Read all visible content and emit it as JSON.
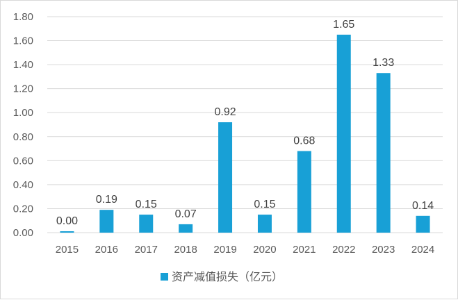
{
  "chart_data": {
    "type": "bar",
    "categories": [
      "2015",
      "2016",
      "2017",
      "2018",
      "2019",
      "2020",
      "2021",
      "2022",
      "2023",
      "2024"
    ],
    "series": [
      {
        "name": "资产减值损失（亿元）",
        "values": [
          0.0,
          0.19,
          0.15,
          0.07,
          0.92,
          0.15,
          0.68,
          1.65,
          1.33,
          0.14
        ],
        "data_labels": [
          "0.00",
          "0.19",
          "0.15",
          "0.07",
          "0.92",
          "0.15",
          "0.68",
          "1.65",
          "1.33",
          "0.14"
        ],
        "color": "#18a0d6"
      }
    ],
    "ylim": [
      0,
      1.8
    ],
    "yticks": [
      "0.00",
      "0.20",
      "0.40",
      "0.60",
      "0.80",
      "1.00",
      "1.20",
      "1.40",
      "1.60",
      "1.80"
    ],
    "grid": true,
    "legend_position": "bottom",
    "xlabel": "",
    "ylabel": ""
  }
}
